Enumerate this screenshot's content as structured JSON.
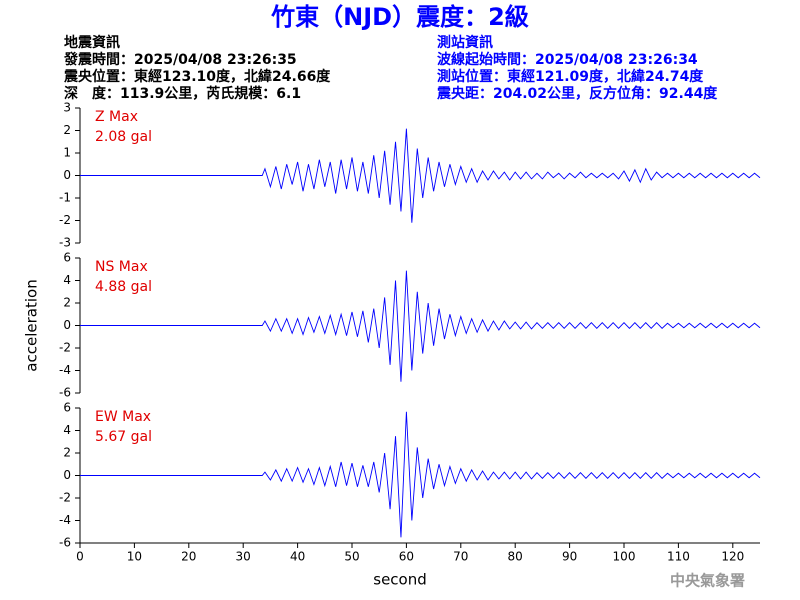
{
  "header": {
    "title": "竹東（NJD）震度：2級",
    "event": [
      "地震資訊",
      "發震時間：2025/04/08 23:26:35",
      "震央位置：東經123.10度，北緯24.66度",
      "深　度：113.9公里，芮氏規模：6.1"
    ],
    "station": [
      "測站資訊",
      "波線起始時間：2025/04/08 23:26:34",
      "測站位置：東經121.09度，北緯24.74度",
      "震央距：204.02公里，反方位角：92.44度"
    ],
    "watermark": "中央氣象署"
  },
  "chart_data": [
    {
      "type": "line",
      "max_label": "Z Max",
      "max_value": "2.08 gal",
      "color": "#0000ff",
      "xlim": [
        0,
        125
      ],
      "ylim": [
        -3,
        3
      ],
      "yticks": [
        -3,
        -2,
        -1,
        0,
        1,
        2,
        3
      ],
      "x": [
        0,
        33.5,
        34,
        35,
        36,
        37,
        38,
        39,
        40,
        41,
        42,
        43,
        44,
        45,
        46,
        47,
        48,
        49,
        50,
        51,
        52,
        53,
        54,
        55,
        56,
        57,
        58,
        59,
        60,
        61,
        62,
        63,
        64,
        65,
        66,
        67,
        68,
        69,
        70,
        71,
        72,
        73,
        74,
        75,
        76,
        77,
        78,
        79,
        80,
        81,
        82,
        83,
        84,
        85,
        86,
        87,
        88,
        89,
        90,
        91,
        92,
        93,
        94,
        95,
        96,
        97,
        98,
        99,
        100,
        101,
        102,
        103,
        104,
        105,
        106,
        107,
        108,
        109,
        110,
        111,
        112,
        113,
        114,
        115,
        116,
        117,
        118,
        119,
        120,
        121,
        122,
        123,
        124,
        125
      ],
      "values": [
        0,
        0,
        0.3,
        -0.5,
        0.4,
        -0.6,
        0.5,
        -0.4,
        0.6,
        -0.7,
        0.5,
        -0.6,
        0.7,
        -0.5,
        0.6,
        -0.8,
        0.7,
        -0.6,
        0.8,
        -0.7,
        0.6,
        -0.8,
        0.9,
        -1.0,
        1.1,
        -1.3,
        1.5,
        -1.6,
        2.08,
        -2.1,
        1.2,
        -1.0,
        0.8,
        -0.7,
        0.6,
        -0.5,
        0.5,
        -0.4,
        0.4,
        -0.3,
        0.3,
        -0.3,
        0.2,
        -0.2,
        0.2,
        -0.15,
        0.15,
        -0.2,
        0.15,
        -0.15,
        0.15,
        -0.15,
        0.1,
        -0.15,
        0.15,
        -0.1,
        0.1,
        -0.15,
        0.1,
        -0.1,
        0.15,
        -0.1,
        0.1,
        -0.1,
        0.1,
        -0.1,
        0.1,
        -0.15,
        0.2,
        -0.25,
        0.25,
        -0.3,
        0.3,
        -0.2,
        0.15,
        -0.1,
        0.1,
        -0.1,
        0.1,
        -0.1,
        0.1,
        -0.1,
        0.1,
        -0.1,
        0.1,
        -0.1,
        0.1,
        -0.1,
        0.1,
        -0.1,
        0.1,
        -0.1,
        0.1,
        -0.1
      ]
    },
    {
      "type": "line",
      "max_label": "NS Max",
      "max_value": "4.88 gal",
      "ylabel": "acceleration",
      "color": "#0000ff",
      "xlim": [
        0,
        125
      ],
      "ylim": [
        -6,
        6
      ],
      "yticks": [
        -6,
        -4,
        -2,
        0,
        2,
        4,
        6
      ],
      "x": [
        0,
        33.5,
        34,
        35,
        36,
        37,
        38,
        39,
        40,
        41,
        42,
        43,
        44,
        45,
        46,
        47,
        48,
        49,
        50,
        51,
        52,
        53,
        54,
        55,
        56,
        57,
        58,
        59,
        60,
        61,
        62,
        63,
        64,
        65,
        66,
        67,
        68,
        69,
        70,
        71,
        72,
        73,
        74,
        75,
        76,
        77,
        78,
        79,
        80,
        81,
        82,
        83,
        84,
        85,
        86,
        87,
        88,
        89,
        90,
        91,
        92,
        93,
        94,
        95,
        96,
        97,
        98,
        99,
        100,
        101,
        102,
        103,
        104,
        105,
        106,
        107,
        108,
        109,
        110,
        111,
        112,
        113,
        114,
        115,
        116,
        117,
        118,
        119,
        120,
        121,
        122,
        123,
        124,
        125
      ],
      "values": [
        0,
        0,
        0.4,
        -0.5,
        0.6,
        -0.5,
        0.6,
        -0.7,
        0.6,
        -0.8,
        0.7,
        -0.6,
        0.8,
        -0.7,
        0.9,
        -0.8,
        1.0,
        -0.9,
        1.2,
        -1.0,
        1.3,
        -1.5,
        1.5,
        -2.0,
        2.5,
        -3.5,
        4.0,
        -5.0,
        4.88,
        -4.0,
        3.0,
        -2.5,
        2.0,
        -1.8,
        1.5,
        -1.2,
        1.0,
        -0.9,
        0.8,
        -0.7,
        0.6,
        -0.6,
        0.5,
        -0.5,
        0.4,
        -0.4,
        0.4,
        -0.3,
        0.3,
        -0.3,
        0.3,
        -0.3,
        0.25,
        -0.25,
        0.25,
        -0.25,
        0.25,
        -0.25,
        0.25,
        -0.25,
        0.25,
        -0.25,
        0.25,
        -0.25,
        0.25,
        -0.25,
        0.25,
        -0.25,
        0.25,
        -0.25,
        0.25,
        -0.25,
        0.25,
        -0.25,
        0.25,
        -0.25,
        0.2,
        -0.2,
        0.2,
        -0.2,
        0.2,
        -0.2,
        0.2,
        -0.2,
        0.2,
        -0.2,
        0.2,
        -0.2,
        0.2,
        -0.2,
        0.2,
        -0.2,
        0.2,
        -0.2
      ]
    },
    {
      "type": "line",
      "max_label": "EW Max",
      "max_value": "5.67 gal",
      "xlabel": "second",
      "color": "#0000ff",
      "xlim": [
        0,
        125
      ],
      "ylim": [
        -6,
        6
      ],
      "yticks": [
        -6,
        -4,
        -2,
        0,
        2,
        4,
        6
      ],
      "xticks": [
        0,
        10,
        20,
        30,
        40,
        50,
        60,
        70,
        80,
        90,
        100,
        110,
        120
      ],
      "x": [
        0,
        33.5,
        34,
        35,
        36,
        37,
        38,
        39,
        40,
        41,
        42,
        43,
        44,
        45,
        46,
        47,
        48,
        49,
        50,
        51,
        52,
        53,
        54,
        55,
        56,
        57,
        58,
        59,
        60,
        61,
        62,
        63,
        64,
        65,
        66,
        67,
        68,
        69,
        70,
        71,
        72,
        73,
        74,
        75,
        76,
        77,
        78,
        79,
        80,
        81,
        82,
        83,
        84,
        85,
        86,
        87,
        88,
        89,
        90,
        91,
        92,
        93,
        94,
        95,
        96,
        97,
        98,
        99,
        100,
        101,
        102,
        103,
        104,
        105,
        106,
        107,
        108,
        109,
        110,
        111,
        112,
        113,
        114,
        115,
        116,
        117,
        118,
        119,
        120,
        121,
        122,
        123,
        124,
        125
      ],
      "values": [
        0,
        0,
        0.3,
        -0.4,
        0.5,
        -0.5,
        0.6,
        -0.5,
        0.7,
        -0.6,
        0.6,
        -0.8,
        0.7,
        -0.9,
        0.8,
        -1.0,
        1.2,
        -0.9,
        1.1,
        -1.0,
        0.9,
        -1.0,
        1.2,
        -1.5,
        2.0,
        -3.0,
        3.5,
        -5.5,
        5.67,
        -4.0,
        2.5,
        -2.0,
        1.5,
        -1.2,
        1.0,
        -0.9,
        0.8,
        -0.7,
        0.6,
        -0.5,
        0.5,
        -0.4,
        0.4,
        -0.4,
        0.3,
        -0.3,
        0.3,
        -0.3,
        0.3,
        -0.3,
        0.3,
        -0.3,
        0.25,
        -0.25,
        0.25,
        -0.25,
        0.25,
        -0.25,
        0.25,
        -0.25,
        0.25,
        -0.25,
        0.25,
        -0.25,
        0.25,
        -0.25,
        0.25,
        -0.25,
        0.25,
        -0.25,
        0.25,
        -0.25,
        0.25,
        -0.25,
        0.25,
        -0.25,
        0.2,
        -0.2,
        0.2,
        -0.2,
        0.2,
        -0.2,
        0.2,
        -0.2,
        0.2,
        -0.2,
        0.2,
        -0.2,
        0.2,
        -0.2,
        0.2,
        -0.2,
        0.2,
        -0.2
      ]
    }
  ]
}
